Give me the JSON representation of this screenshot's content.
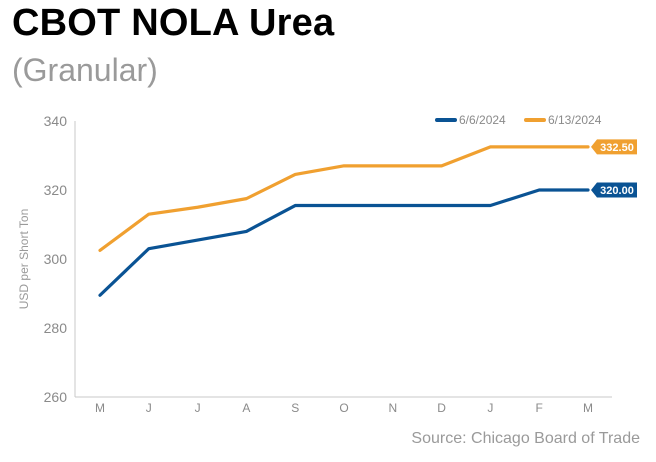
{
  "header": {
    "title": "CBOT NOLA Urea",
    "subtitle": "(Granular)"
  },
  "footer": {
    "source": "Source: Chicago Board of Trade"
  },
  "chart_data": {
    "type": "line",
    "categories": [
      "M",
      "J",
      "J",
      "A",
      "S",
      "O",
      "N",
      "D",
      "J",
      "F",
      "M"
    ],
    "ylabel": "USD per Short Ton",
    "ylim": [
      260,
      340
    ],
    "yticks": [
      260,
      280,
      300,
      320,
      340
    ],
    "grid": false,
    "legend_position": "top-right",
    "series": [
      {
        "name": "6/6/2024",
        "color": "#0a5394",
        "end_label": "320.00",
        "values": [
          289.5,
          303,
          305.5,
          308,
          315.5,
          315.5,
          315.5,
          315.5,
          315.5,
          320,
          320
        ]
      },
      {
        "name": "6/13/2024",
        "color": "#f0a030",
        "end_label": "332.50",
        "values": [
          302.5,
          313,
          315,
          317.5,
          324.5,
          327,
          327,
          327,
          332.5,
          332.5,
          332.5
        ]
      }
    ]
  }
}
